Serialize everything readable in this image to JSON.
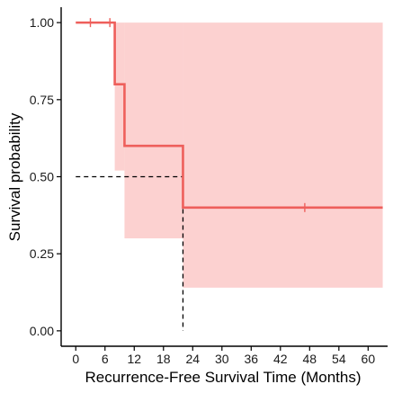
{
  "chart_data": {
    "type": "survival_step",
    "xlabel": "Recurrence-Free Survival Time (Months)",
    "ylabel": "Survival probability",
    "xlim": [
      -3,
      64
    ],
    "ylim": [
      -0.05,
      1.05
    ],
    "x_ticks": [
      0,
      6,
      12,
      18,
      24,
      30,
      36,
      42,
      48,
      54,
      60
    ],
    "x_tick_labels": [
      "0",
      "6",
      "12",
      "18",
      "24",
      "30",
      "36",
      "42",
      "48",
      "54",
      "60"
    ],
    "y_ticks": [
      0,
      0.25,
      0.5,
      0.75,
      1.0
    ],
    "y_tick_labels": [
      "0.00",
      "0.25",
      "0.50",
      "0.75",
      "1.00"
    ],
    "grid": false,
    "legend": "none",
    "colors": {
      "line": "#ee5f5b",
      "ci_fill": "#fcd1d0",
      "median": "#000000",
      "axis": "#000000"
    },
    "series": [
      {
        "steps": [
          {
            "x": 0,
            "y": 1.0
          },
          {
            "x": 8,
            "y": 0.8
          },
          {
            "x": 10,
            "y": 0.6
          },
          {
            "x": 22,
            "y": 0.4
          },
          {
            "x": 63,
            "y": 0.4
          }
        ],
        "ci": [
          {
            "x0": 8,
            "x1": 10,
            "lower": 0.52,
            "upper": 1.0
          },
          {
            "x0": 10,
            "x1": 22,
            "lower": 0.3,
            "upper": 1.0
          },
          {
            "x0": 22,
            "x1": 63,
            "lower": 0.14,
            "upper": 1.0
          }
        ],
        "censored": [
          {
            "x": 3,
            "y": 1.0
          },
          {
            "x": 7,
            "y": 1.0
          },
          {
            "x": 47,
            "y": 0.4
          }
        ]
      }
    ],
    "median_survival": {
      "x": 22,
      "y": 0.5
    }
  }
}
